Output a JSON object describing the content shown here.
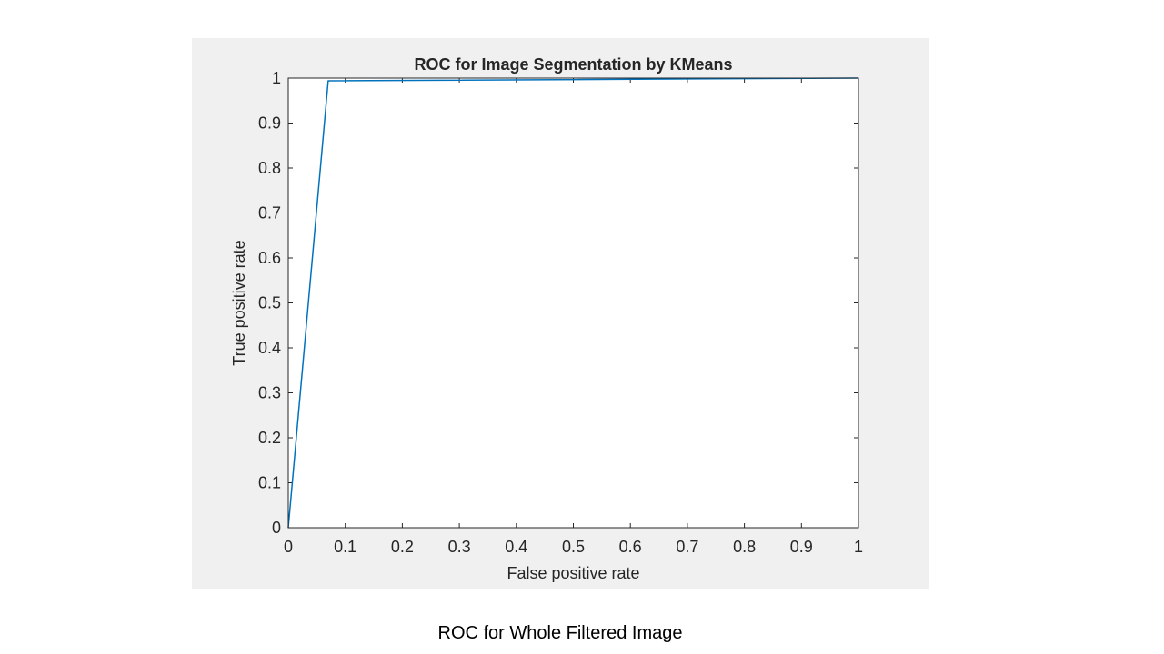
{
  "caption": "ROC for Whole Filtered Image",
  "colors": {
    "panel_background": "#f0f0f0",
    "plot_background": "#ffffff",
    "axis": "#262626",
    "series": "#0072bd"
  },
  "chart_data": {
    "type": "line",
    "title": "ROC for Image Segmentation by KMeans",
    "xlabel": "False positive rate",
    "ylabel": "True positive rate",
    "xlim": [
      0,
      1
    ],
    "ylim": [
      0,
      1
    ],
    "xticks": [
      0,
      0.1,
      0.2,
      0.3,
      0.4,
      0.5,
      0.6,
      0.7,
      0.8,
      0.9,
      1
    ],
    "yticks": [
      0,
      0.1,
      0.2,
      0.3,
      0.4,
      0.5,
      0.6,
      0.7,
      0.8,
      0.9,
      1
    ],
    "xtick_labels": [
      "0",
      "0.1",
      "0.2",
      "0.3",
      "0.4",
      "0.5",
      "0.6",
      "0.7",
      "0.8",
      "0.9",
      "1"
    ],
    "ytick_labels": [
      "0",
      "0.1",
      "0.2",
      "0.3",
      "0.4",
      "0.5",
      "0.6",
      "0.7",
      "0.8",
      "0.9",
      "1"
    ],
    "grid": false,
    "legend": "none",
    "series": [
      {
        "x": [
          0,
          0.07,
          1
        ],
        "y": [
          0,
          0.994,
          1
        ]
      }
    ]
  }
}
